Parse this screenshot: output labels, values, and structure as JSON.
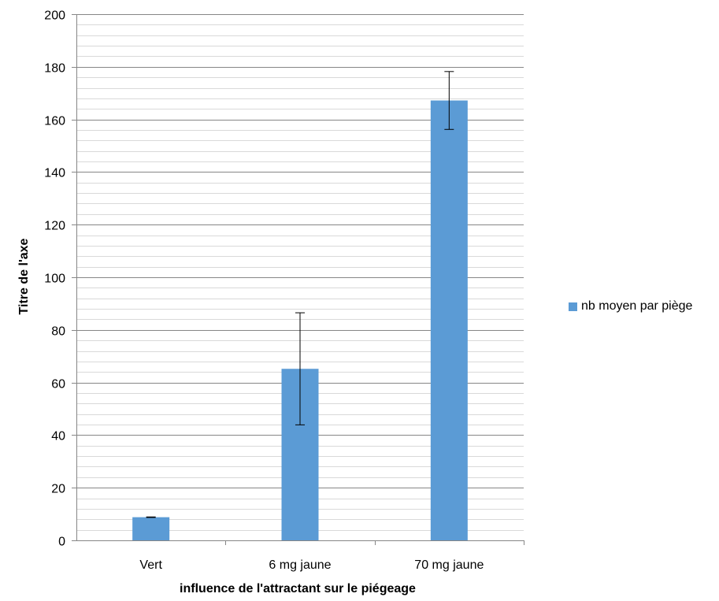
{
  "chart_data": {
    "type": "bar",
    "categories": [
      "Vert",
      "6 mg jaune",
      "70 mg jaune"
    ],
    "series": [
      {
        "name": "nb moyen par piège",
        "values": [
          8.8,
          65.2,
          167.2
        ],
        "error": [
          0.1,
          21.3,
          11.0
        ],
        "color": "#5B9BD5"
      }
    ],
    "xlabel": "influence de l'attractant sur le piégeage",
    "ylabel": "Titre de l'axe",
    "ylim": [
      0,
      200
    ],
    "yticks": [
      0,
      20,
      40,
      60,
      80,
      100,
      120,
      140,
      160,
      180,
      200
    ],
    "minor_grid_step": 4,
    "grid": true,
    "legend_position": "right"
  }
}
